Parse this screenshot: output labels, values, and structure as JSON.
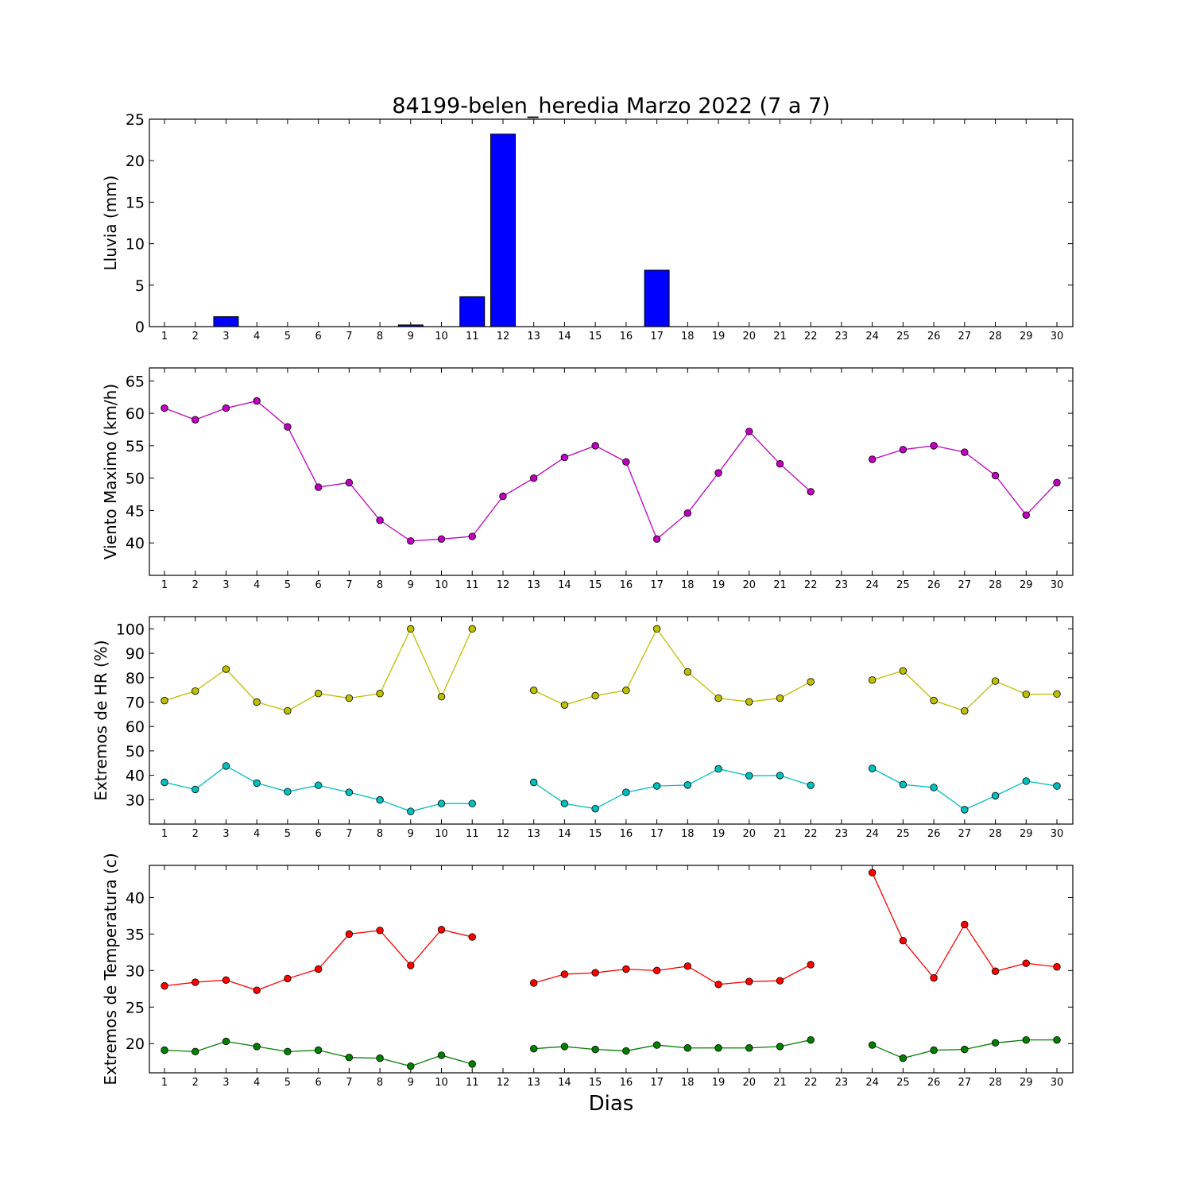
{
  "title": "84199-belen_heredia Marzo 2022  (7 a 7)",
  "xlabel": "Dias",
  "colors": {
    "rain": "#0000ff",
    "wind": "#bf00bf",
    "hr_max": "#bfbf00",
    "hr_min": "#00bfbf",
    "temp_max": "#ff0000",
    "temp_min": "#008000"
  },
  "chart_data": [
    {
      "type": "bar",
      "ylabel": "Lluvia (mm)",
      "ylim": [
        0,
        25
      ],
      "yticks": [
        0,
        5,
        10,
        15,
        20,
        25
      ],
      "x": [
        1,
        2,
        3,
        4,
        5,
        6,
        7,
        8,
        9,
        10,
        11,
        12,
        13,
        14,
        15,
        16,
        17,
        18,
        19,
        20,
        21,
        22,
        23,
        24,
        25,
        26,
        27,
        28,
        29,
        30
      ],
      "series": [
        {
          "values": [
            0,
            0,
            1.2,
            0,
            0,
            0,
            0,
            0,
            0.2,
            0,
            3.6,
            23.2,
            0,
            0,
            0,
            0,
            6.8,
            0,
            0,
            0,
            0,
            0,
            0,
            0,
            0,
            0,
            0,
            0,
            0,
            0
          ]
        }
      ]
    },
    {
      "type": "line",
      "ylabel": "Viento Maximo (km/h)",
      "ylim": [
        35,
        67
      ],
      "yticks": [
        40,
        45,
        50,
        55,
        60,
        65
      ],
      "x": [
        1,
        2,
        3,
        4,
        5,
        6,
        7,
        8,
        9,
        10,
        11,
        12,
        13,
        14,
        15,
        16,
        17,
        18,
        19,
        20,
        21,
        22,
        23,
        24,
        25,
        26,
        27,
        28,
        29,
        30
      ],
      "series": [
        {
          "values": [
            60.8,
            59.0,
            60.8,
            61.9,
            57.9,
            48.6,
            49.3,
            43.5,
            40.3,
            40.6,
            41.0,
            47.2,
            50.0,
            53.2,
            55.0,
            52.5,
            40.6,
            44.6,
            50.8,
            57.2,
            52.2,
            47.9,
            null,
            52.9,
            54.4,
            55.0,
            54.0,
            50.4,
            44.3,
            49.3
          ]
        }
      ]
    },
    {
      "type": "line",
      "ylabel": "Extremos de HR (%)",
      "ylim": [
        20,
        105
      ],
      "yticks": [
        30,
        40,
        50,
        60,
        70,
        80,
        90,
        100
      ],
      "x": [
        1,
        2,
        3,
        4,
        5,
        6,
        7,
        8,
        9,
        10,
        11,
        12,
        13,
        14,
        15,
        16,
        17,
        18,
        19,
        20,
        21,
        22,
        23,
        24,
        25,
        26,
        27,
        28,
        29,
        30
      ],
      "series": [
        {
          "values": [
            70.6,
            74.5,
            83.5,
            70.0,
            66.4,
            73.5,
            71.6,
            73.5,
            100,
            72.2,
            100,
            null,
            74.8,
            68.8,
            72.6,
            74.8,
            100,
            82.4,
            71.6,
            70.1,
            71.6,
            78.3,
            null,
            79.0,
            82.8,
            70.6,
            66.4,
            78.6,
            73.2,
            73.3
          ]
        },
        {
          "values": [
            37.1,
            34.2,
            43.8,
            36.8,
            33.3,
            35.9,
            33.0,
            29.9,
            25.2,
            28.4,
            28.4,
            null,
            37.1,
            28.4,
            26.3,
            33.0,
            35.6,
            36.0,
            42.6,
            39.8,
            39.9,
            35.9,
            null,
            42.8,
            36.2,
            35.0,
            25.9,
            31.6,
            37.6,
            35.6
          ]
        }
      ]
    },
    {
      "type": "line",
      "ylabel": "Extremos de Temperatura (c)",
      "ylim": [
        16,
        44.4
      ],
      "yticks": [
        20,
        25,
        30,
        35,
        40
      ],
      "x": [
        1,
        2,
        3,
        4,
        5,
        6,
        7,
        8,
        9,
        10,
        11,
        12,
        13,
        14,
        15,
        16,
        17,
        18,
        19,
        20,
        21,
        22,
        23,
        24,
        25,
        26,
        27,
        28,
        29,
        30
      ],
      "series": [
        {
          "values": [
            27.9,
            28.4,
            28.7,
            27.3,
            28.9,
            30.2,
            35.0,
            35.5,
            30.7,
            35.6,
            34.6,
            null,
            28.3,
            29.5,
            29.7,
            30.2,
            30.0,
            30.6,
            28.1,
            28.5,
            28.6,
            30.8,
            null,
            43.4,
            34.1,
            29.0,
            36.3,
            29.9,
            31.0,
            30.5
          ]
        },
        {
          "values": [
            19.1,
            18.9,
            20.3,
            19.6,
            18.9,
            19.1,
            18.1,
            18.0,
            16.9,
            18.4,
            17.2,
            null,
            19.3,
            19.6,
            19.2,
            19.0,
            19.8,
            19.4,
            19.4,
            19.4,
            19.6,
            20.5,
            null,
            19.8,
            18.0,
            19.1,
            19.2,
            20.1,
            20.5,
            20.5
          ]
        }
      ]
    }
  ]
}
